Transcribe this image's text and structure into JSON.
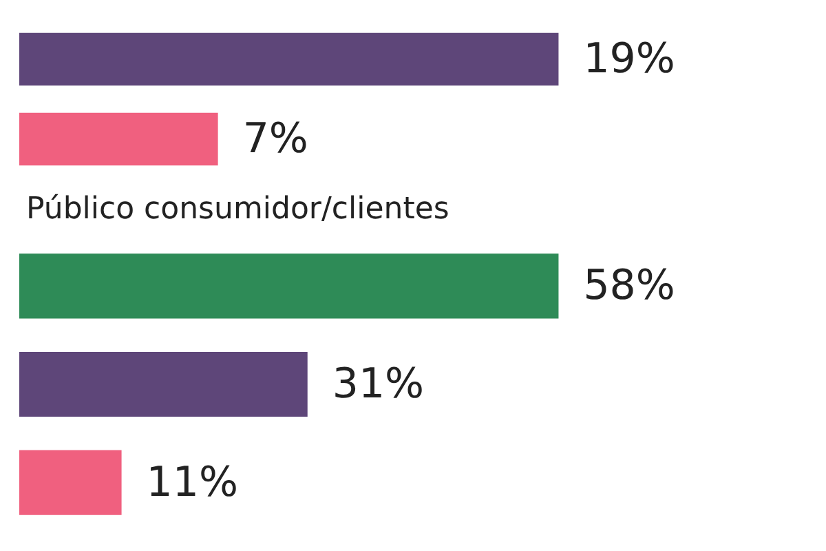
{
  "chart_data": [
    {
      "type": "bar",
      "orientation": "horizontal",
      "categories": [
        null,
        null
      ],
      "values": [
        19,
        7
      ],
      "colors": [
        "#5e4679",
        "#f0607f"
      ],
      "value_labels": [
        "19%",
        "7%"
      ]
    },
    {
      "type": "bar",
      "orientation": "horizontal",
      "title": "Público consumidor/clientes",
      "categories": [
        null,
        null,
        null
      ],
      "values": [
        58,
        31,
        11
      ],
      "colors": [
        "#2e8b57",
        "#5e4679",
        "#f0607f"
      ],
      "value_labels": [
        "58%",
        "31%",
        "11%"
      ]
    }
  ]
}
